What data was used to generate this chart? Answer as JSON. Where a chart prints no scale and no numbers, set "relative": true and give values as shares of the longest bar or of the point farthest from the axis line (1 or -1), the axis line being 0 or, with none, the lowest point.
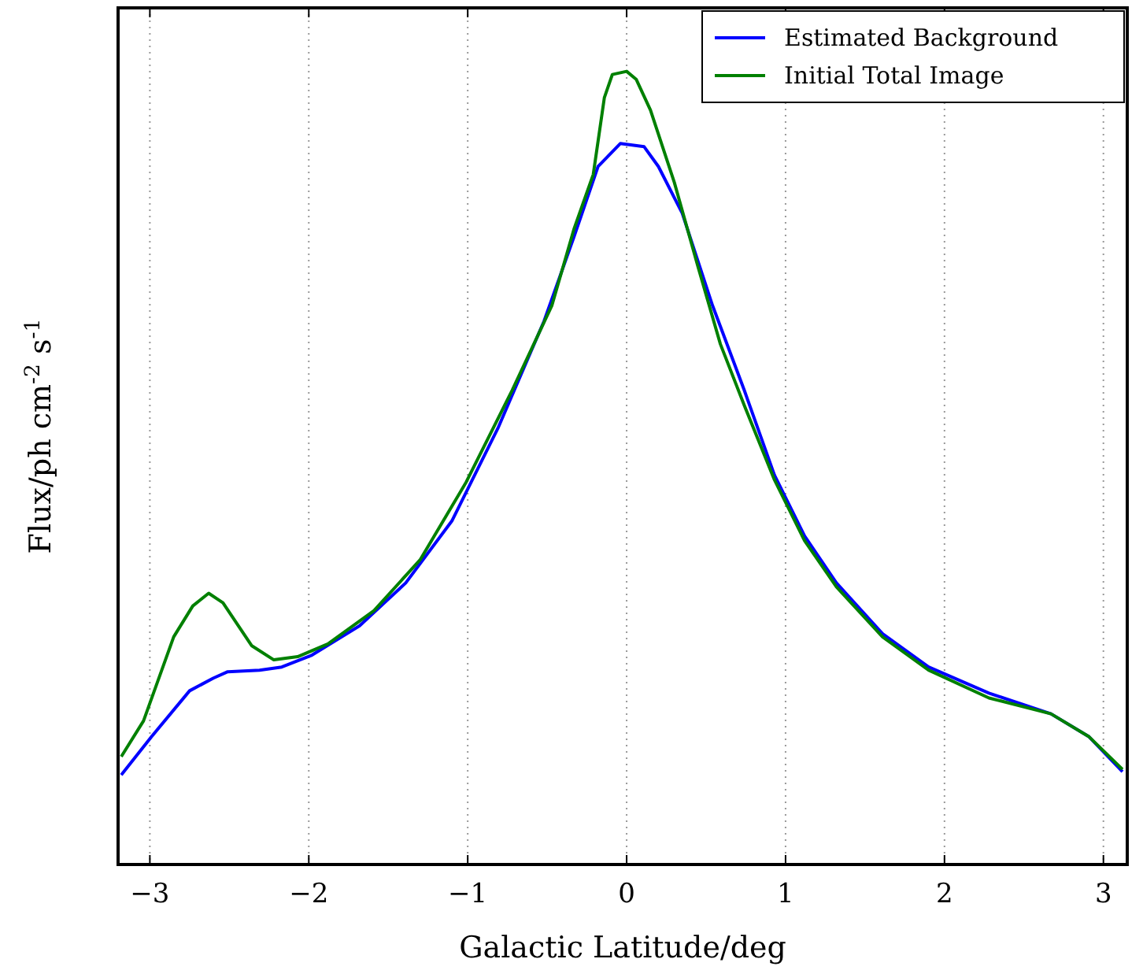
{
  "chart_data": {
    "type": "line",
    "relative": true,
    "xlabel": "Galactic Latitude/deg",
    "ylabel": "Flux/ph cm$^{-2}$ s$^{-1}$",
    "xlim": [
      -3.2,
      3.15
    ],
    "xticks": [
      {
        "value": -3,
        "label": "−3"
      },
      {
        "value": -2,
        "label": "−2"
      },
      {
        "value": -1,
        "label": "−1"
      },
      0,
      1,
      2,
      3
    ],
    "grid": "x",
    "legend": "top right",
    "series": [
      {
        "name": "Estimated Background",
        "color": "#0000ff",
        "x": [
          -3.18,
          -2.99,
          -2.75,
          -2.6,
          -2.51,
          -2.31,
          -2.17,
          -1.98,
          -1.68,
          -1.39,
          -1.1,
          -0.81,
          -0.52,
          -0.33,
          -0.18,
          -0.04,
          0.11,
          0.2,
          0.35,
          0.54,
          0.74,
          0.93,
          1.12,
          1.32,
          1.61,
          1.9,
          2.28,
          2.67,
          2.91,
          3.12
        ],
        "values": [
          0.113,
          0.161,
          0.219,
          0.235,
          0.243,
          0.245,
          0.249,
          0.264,
          0.301,
          0.355,
          0.433,
          0.55,
          0.685,
          0.792,
          0.88,
          0.909,
          0.905,
          0.88,
          0.821,
          0.705,
          0.598,
          0.491,
          0.414,
          0.355,
          0.291,
          0.249,
          0.216,
          0.19,
          0.161,
          0.117
        ]
      },
      {
        "name": "Initial Total Image",
        "color": "#008000",
        "x": [
          -3.18,
          -3.04,
          -2.85,
          -2.73,
          -2.63,
          -2.54,
          -2.36,
          -2.22,
          -2.07,
          -1.88,
          -1.59,
          -1.3,
          -1.01,
          -0.72,
          -0.47,
          -0.33,
          -0.21,
          -0.14,
          -0.09,
          0,
          0.06,
          0.15,
          0.3,
          0.45,
          0.59,
          0.74,
          0.93,
          1.12,
          1.32,
          1.61,
          1.9,
          2.28,
          2.67,
          2.91,
          3.12
        ],
        "values": [
          0.136,
          0.181,
          0.287,
          0.326,
          0.342,
          0.33,
          0.276,
          0.258,
          0.262,
          0.278,
          0.32,
          0.384,
          0.482,
          0.598,
          0.705,
          0.802,
          0.87,
          0.967,
          0.996,
          1,
          0.99,
          0.951,
          0.86,
          0.753,
          0.656,
          0.579,
          0.485,
          0.408,
          0.35,
          0.287,
          0.245,
          0.21,
          0.19,
          0.161,
          0.12
        ]
      }
    ]
  }
}
